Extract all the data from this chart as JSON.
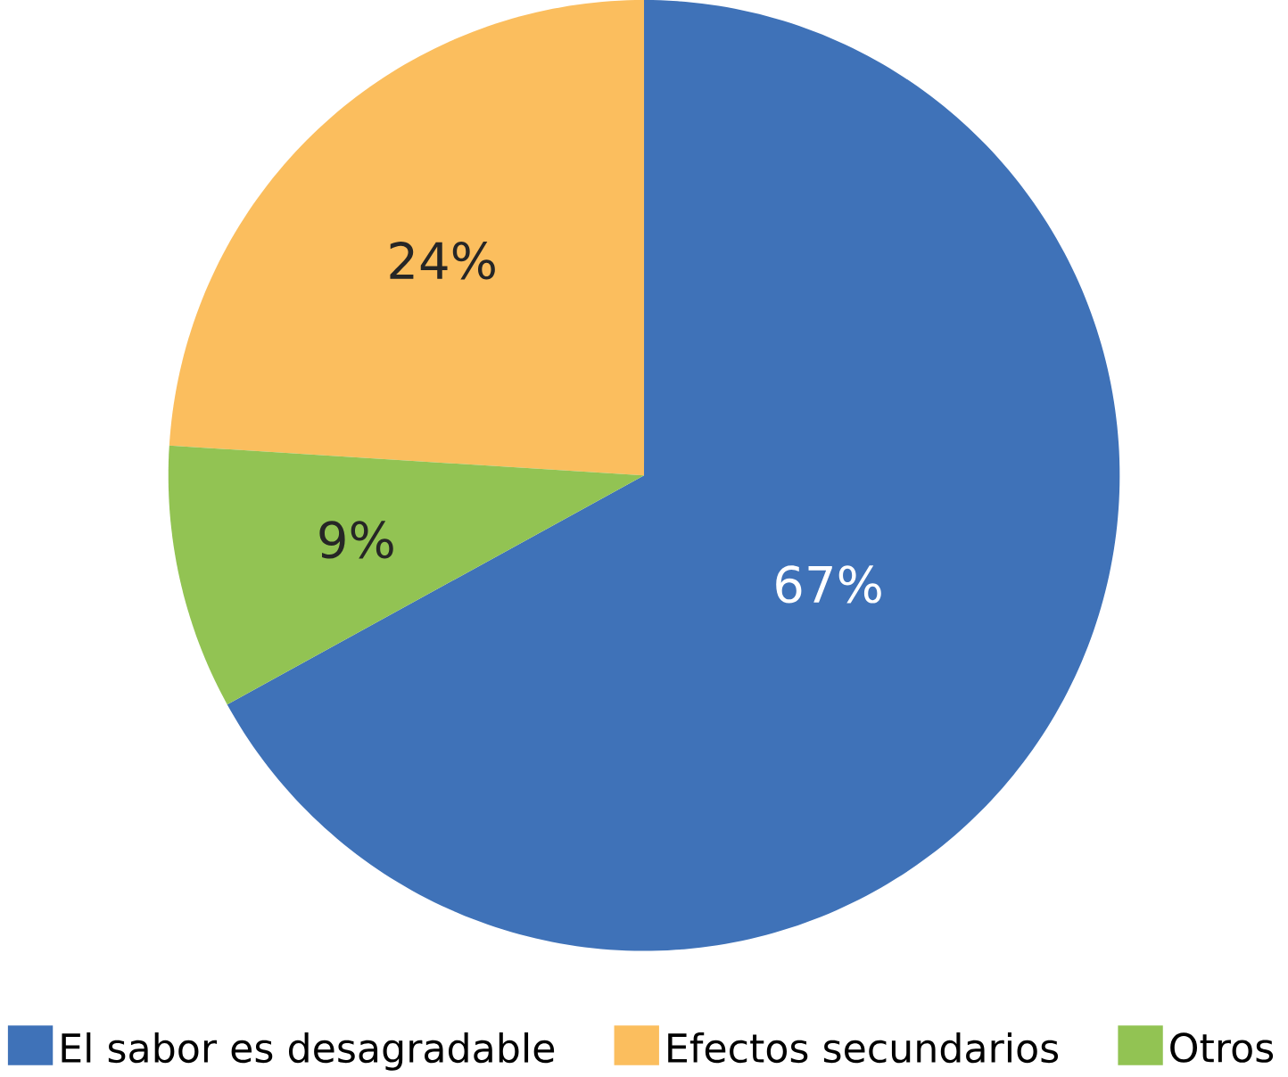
{
  "chart_data": {
    "type": "pie",
    "categories": [
      "El sabor es desagradable",
      "Efectos secundarios",
      "Otros"
    ],
    "values": [
      67,
      24,
      9
    ],
    "colors": [
      "#3f72b8",
      "#fbbe5e",
      "#92c353"
    ],
    "value_labels": [
      "67%",
      "24%",
      "9%"
    ],
    "legend": "bottom"
  }
}
